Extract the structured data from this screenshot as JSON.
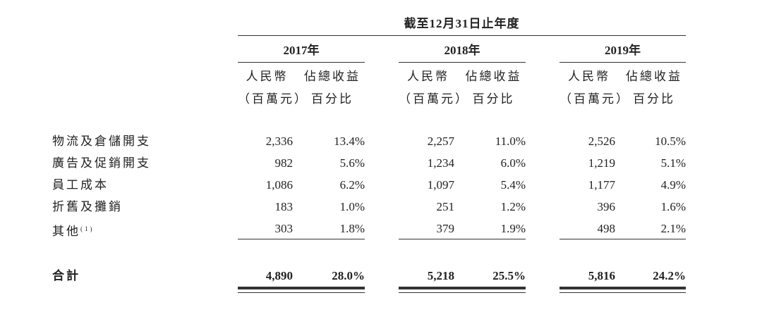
{
  "header": {
    "title": "截至12月31日止年度"
  },
  "years": [
    "2017年",
    "2018年",
    "2019年"
  ],
  "column_labels": [
    [
      "人民幣",
      "（百萬元）"
    ],
    [
      "佔總收益",
      "百分比"
    ]
  ],
  "table": {
    "rows": [
      {
        "label": "物流及倉儲開支",
        "cells": [
          "2,336",
          "13.4%",
          "2,257",
          "11.0%",
          "2,526",
          "10.5%"
        ]
      },
      {
        "label": "廣告及促銷開支",
        "cells": [
          "982",
          "5.6%",
          "1,234",
          "6.0%",
          "1,219",
          "5.1%"
        ]
      },
      {
        "label": "員工成本",
        "cells": [
          "1,086",
          "6.2%",
          "1,097",
          "5.4%",
          "1,177",
          "4.9%"
        ]
      },
      {
        "label": "折舊及攤銷",
        "cells": [
          "183",
          "1.0%",
          "251",
          "1.2%",
          "396",
          "1.6%"
        ]
      },
      {
        "label": "其他",
        "footnote": "(1)",
        "cells": [
          "303",
          "1.8%",
          "379",
          "1.9%",
          "498",
          "2.1%"
        ]
      }
    ],
    "total": {
      "label": "合計",
      "cells": [
        "4,890",
        "28.0%",
        "5,218",
        "25.5%",
        "5,816",
        "24.2%"
      ]
    }
  }
}
